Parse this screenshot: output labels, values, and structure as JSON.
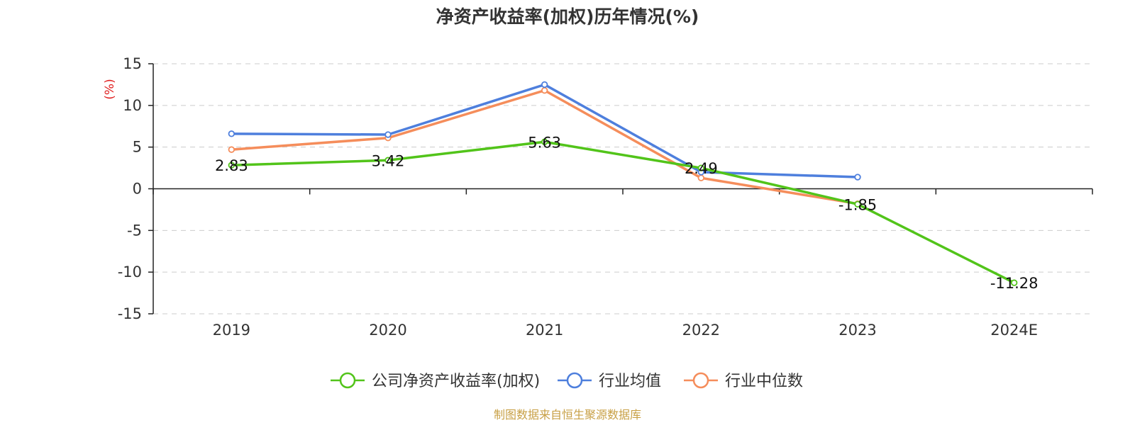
{
  "chart_data": {
    "type": "line",
    "title": "净资产收益率(加权)历年情况(%)",
    "ylabel": "(%)",
    "categories": [
      "2019",
      "2020",
      "2021",
      "2022",
      "2023",
      "2024E"
    ],
    "ylim": [
      -15,
      15
    ],
    "yticks": [
      15,
      10,
      5,
      0,
      -5,
      -10,
      -15
    ],
    "grid": true,
    "legend_position": "bottom",
    "series": [
      {
        "name": "公司净资产收益率(加权)",
        "color": "#52c41a",
        "values": [
          2.83,
          3.42,
          5.63,
          2.49,
          -1.85,
          -11.28
        ],
        "labels": [
          "2.83",
          "3.42",
          "5.63",
          "2.49",
          "-1.85",
          "-11.28"
        ]
      },
      {
        "name": "行业均值",
        "color": "#4e7fdd",
        "values": [
          6.6,
          6.5,
          12.5,
          2.0,
          1.4,
          null
        ]
      },
      {
        "name": "行业中位数",
        "color": "#f58d5b",
        "values": [
          4.7,
          6.1,
          11.8,
          1.3,
          -1.8,
          null
        ]
      }
    ],
    "source": "制图数据来自恒生聚源数据库"
  }
}
